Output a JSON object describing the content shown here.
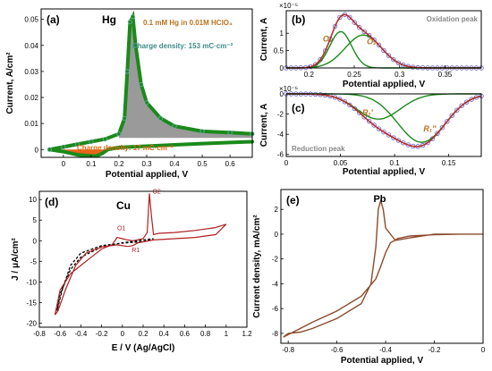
{
  "chart_data": [
    {
      "id": "a",
      "type": "line",
      "panel_label": "(a)",
      "element": "Hg",
      "legend_text": "0.1 mM Hg in 0.01M HClO₄",
      "xlabel": "Potential applied, V",
      "ylabel": "Current, A/cm²",
      "xlim": [
        -0.08,
        0.68
      ],
      "ylim": [
        -0.003,
        0.054
      ],
      "xticks": [
        "0",
        "0.1",
        "0.2",
        "0.3",
        "0.4",
        "0.5",
        "0.6"
      ],
      "yticks": [
        "0",
        "0.01",
        "0.02",
        "0.03",
        "0.04",
        "0.05"
      ],
      "annotations": [
        {
          "text": "Charge density: 153 mC·cm⁻²",
          "color": "#3f8a8a"
        },
        {
          "text": "Charge density: 17 mC·cm⁻²",
          "color": "#e06a10"
        }
      ],
      "series": [
        {
          "role": "anodic",
          "color": "#1a8a1a",
          "x": [
            -0.05,
            0.0,
            0.05,
            0.1,
            0.15,
            0.2,
            0.22,
            0.23,
            0.24,
            0.25,
            0.26,
            0.28,
            0.3,
            0.35,
            0.4,
            0.5,
            0.6,
            0.68
          ],
          "y": [
            0.0,
            0.001,
            0.002,
            0.003,
            0.004,
            0.006,
            0.012,
            0.03,
            0.049,
            0.051,
            0.04,
            0.025,
            0.018,
            0.012,
            0.009,
            0.007,
            0.0065,
            0.006
          ]
        },
        {
          "role": "cathodic",
          "color": "#1a8a1a",
          "x": [
            0.68,
            0.6,
            0.5,
            0.4,
            0.3,
            0.2,
            0.16,
            0.14,
            0.12,
            0.1,
            0.05,
            0.0,
            -0.05
          ],
          "y": [
            0.003,
            0.0027,
            0.0023,
            0.0018,
            0.0013,
            0.0008,
            0.0,
            -0.0015,
            -0.0025,
            -0.0025,
            -0.002,
            -0.0008,
            0.0
          ]
        }
      ]
    },
    {
      "id": "b",
      "type": "line",
      "panel_label": "(b)",
      "title": "Oxidation peak",
      "xlabel": "Potential applied, V",
      "ylabel": "Current, A",
      "y_exponent": "×10⁻⁵",
      "xlim": [
        0.175,
        0.39
      ],
      "ylim": [
        0,
        1.65
      ],
      "xticks": [
        "0.2",
        "0.25",
        "0.3",
        "0.35"
      ],
      "yticks": [
        "0",
        "0.5",
        "1"
      ],
      "series": [
        {
          "name": "O₁",
          "color": "#1a8a1a",
          "peak_x": 0.235,
          "peak_y": 1.05,
          "width": 0.012
        },
        {
          "name": "O₂",
          "color": "#1a8a1a",
          "peak_x": 0.26,
          "peak_y": 0.95,
          "width": 0.02
        },
        {
          "role": "sum",
          "color": "#b03030",
          "peaks": [
            [
              0.235,
              1.05,
              0.012
            ],
            [
              0.26,
              0.95,
              0.02
            ]
          ]
        }
      ]
    },
    {
      "id": "c",
      "type": "line",
      "panel_label": "(c)",
      "title": "Reduction peak",
      "xlabel": "Potential applied, V",
      "ylabel": "Current, A",
      "y_exponent": "×10⁻⁶",
      "xlim": [
        0,
        0.18
      ],
      "ylim": [
        -6.2,
        0
      ],
      "xticks": [
        "0",
        "0.05",
        "0.1",
        "0.15"
      ],
      "yticks": [
        "0",
        "-2",
        "-4",
        "-6"
      ],
      "series": [
        {
          "name": "R₁′",
          "color": "#1a8a1a",
          "peak_x": 0.085,
          "peak_y": -2.5,
          "width": 0.02
        },
        {
          "name": "R₁″",
          "color": "#1a8a1a",
          "peak_x": 0.125,
          "peak_y": -4.8,
          "width": 0.022
        },
        {
          "role": "sum",
          "color": "#b03030",
          "peaks": [
            [
              0.085,
              -2.5,
              0.02
            ],
            [
              0.125,
              -4.8,
              0.022
            ]
          ]
        }
      ]
    },
    {
      "id": "d",
      "type": "line",
      "panel_label": "(d)",
      "element": "Cu",
      "xlabel": "E / V (Ag/AgCl)",
      "ylabel": "J / μA/cm²",
      "xlim": [
        -0.8,
        1.2
      ],
      "ylim": [
        -21,
        12
      ],
      "xticks": [
        "-0.8",
        "-0.6",
        "-0.4",
        "-0.2",
        "0",
        "0.2",
        "0.4",
        "0.6",
        "0.8",
        "1",
        "1.2"
      ],
      "yticks": [
        "10",
        "5",
        "0",
        "-5",
        "-10",
        "-15",
        "-20"
      ],
      "peak_labels": [
        {
          "text": "O2",
          "x": 0.29,
          "y": 11.5
        },
        {
          "text": "O1",
          "x": -0.05,
          "y": 2.6
        },
        {
          "text": "R1",
          "x": 0.09,
          "y": -2.8
        }
      ],
      "series": [
        {
          "role": "red",
          "color": "#b02020",
          "x": [
            -0.65,
            -0.6,
            -0.5,
            -0.4,
            -0.3,
            -0.2,
            -0.1,
            -0.05,
            0.0,
            0.05,
            0.1,
            0.2,
            0.24,
            0.26,
            0.28,
            0.3,
            0.35,
            0.5,
            0.7,
            0.9,
            1.0,
            0.9,
            0.7,
            0.5,
            0.3,
            0.15,
            0.1,
            0.05,
            -0.05,
            -0.2,
            -0.35,
            -0.45,
            -0.55,
            -0.62,
            -0.65
          ],
          "y": [
            -18,
            -12,
            -8,
            -6,
            -4,
            -2,
            -1,
            0.8,
            0.5,
            0.2,
            0.0,
            0.5,
            2,
            11.5,
            6,
            1.5,
            1.8,
            2,
            2.5,
            3.2,
            4,
            1.5,
            0.8,
            0.5,
            0.2,
            -0.5,
            -1.2,
            -1.4,
            -1,
            -1.5,
            -3,
            -6,
            -12,
            -17,
            -18
          ]
        },
        {
          "role": "black-dashed",
          "color": "#000000",
          "x": [
            -0.63,
            -0.6,
            -0.5,
            -0.4,
            -0.2,
            0.0,
            0.2,
            0.3,
            0.2,
            0.0,
            -0.2,
            -0.4,
            -0.5,
            -0.58,
            -0.63
          ],
          "y": [
            -17,
            -13,
            -7,
            -4,
            -1.5,
            -0.5,
            0.2,
            0.5,
            -0.2,
            -0.6,
            -1.2,
            -3,
            -6,
            -12,
            -17
          ]
        }
      ]
    },
    {
      "id": "e",
      "type": "line",
      "panel_label": "(e)",
      "element": "Pb",
      "xlabel": "Potential applied, V",
      "ylabel": "Current density, mA/cm²",
      "xlim": [
        -0.83,
        0
      ],
      "ylim": [
        -8.8,
        3.6
      ],
      "xticks": [
        "-0.8",
        "-0.6",
        "-0.4",
        "-0.2",
        "0"
      ],
      "yticks": [
        "2",
        "0",
        "-2",
        "-4",
        "-6",
        "-8"
      ],
      "series": [
        {
          "role": "cv",
          "color": "#8b4a2b",
          "x": [
            -0.8,
            -0.75,
            -0.7,
            -0.6,
            -0.5,
            -0.46,
            -0.44,
            -0.43,
            -0.42,
            -0.41,
            -0.4,
            -0.36,
            -0.3,
            -0.2,
            -0.1,
            0.0,
            -0.1,
            -0.2,
            -0.3,
            -0.35,
            -0.38,
            -0.4,
            -0.42,
            -0.44,
            -0.5,
            -0.6,
            -0.7,
            -0.75,
            -0.8,
            -0.82,
            -0.8
          ],
          "y": [
            -8.0,
            -7.9,
            -7.6,
            -6.8,
            -5.6,
            -4.0,
            -1.0,
            2.0,
            2.7,
            2.0,
            0.5,
            -0.5,
            -0.3,
            0.0,
            0.0,
            0.0,
            0.0,
            -0.05,
            -0.15,
            -0.35,
            -0.7,
            -1.5,
            -2.6,
            -3.6,
            -5.0,
            -6.2,
            -7.1,
            -7.6,
            -8.1,
            -8.3,
            -8.0
          ]
        }
      ]
    }
  ]
}
